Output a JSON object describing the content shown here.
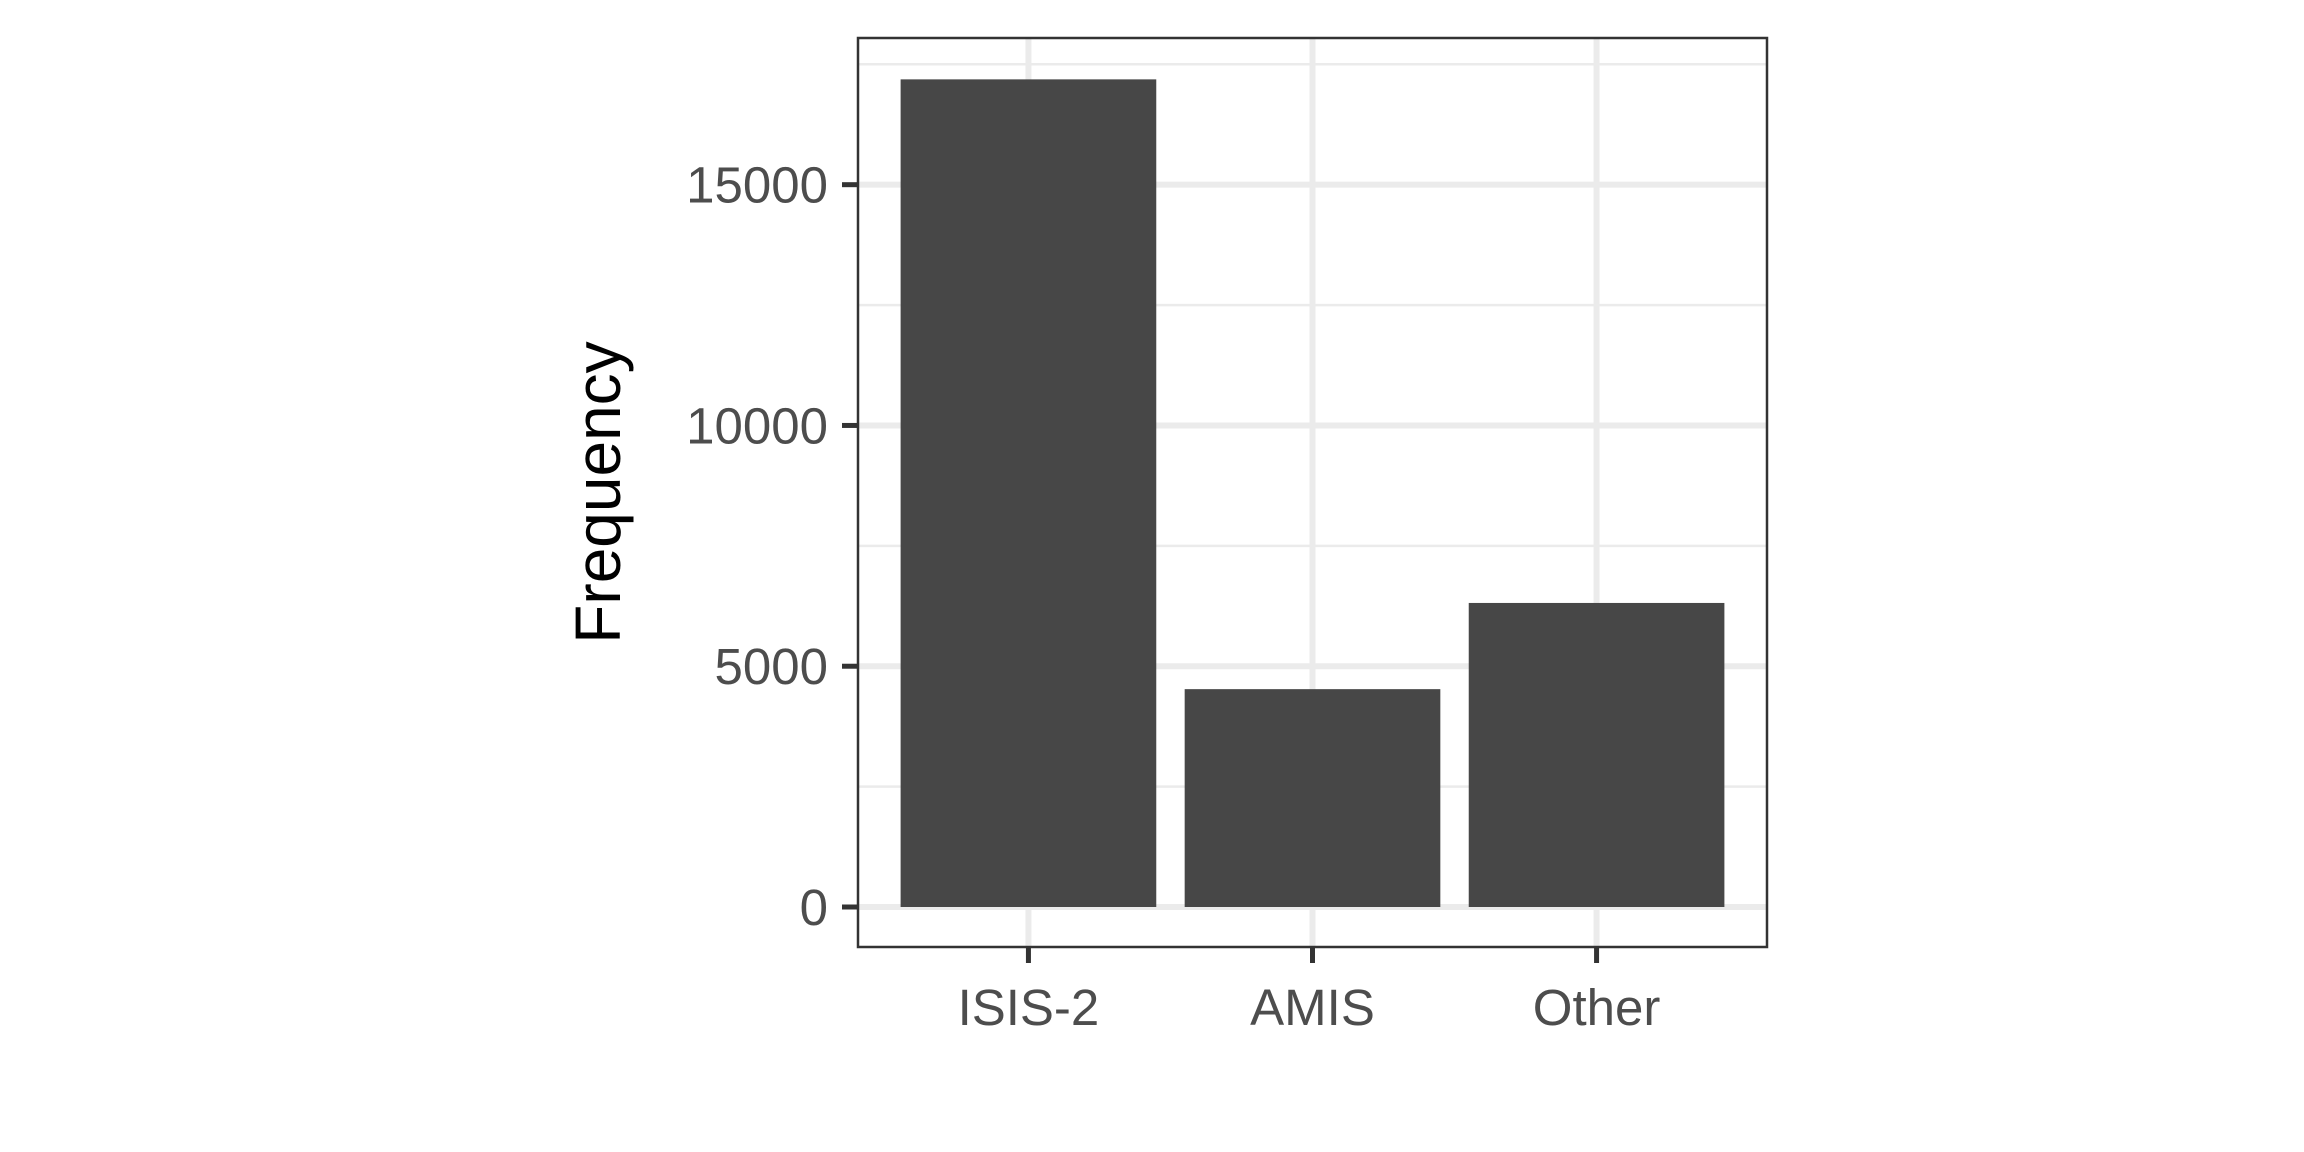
{
  "chart_data": {
    "type": "bar",
    "title": "",
    "xlabel": "",
    "ylabel": "Frequency",
    "categories": [
      "ISIS-2",
      "AMIS",
      "Other"
    ],
    "values": [
      17187,
      4524,
      6314
    ],
    "ylim": [
      0,
      18046
    ],
    "yticks": [
      0,
      5000,
      10000,
      15000
    ],
    "ytick_labels": [
      "0",
      "5000",
      "10000",
      "15000"
    ],
    "y_minor_gridlines": [
      2500,
      7500,
      12500,
      17500
    ],
    "grid": true,
    "legend": "none",
    "colors": {
      "bar": "#474747",
      "grid": "#ebebeb",
      "panel_border": "#333333",
      "tick": "#333333",
      "tick_label": "#4d4d4d",
      "axis_title": "#000000"
    }
  }
}
